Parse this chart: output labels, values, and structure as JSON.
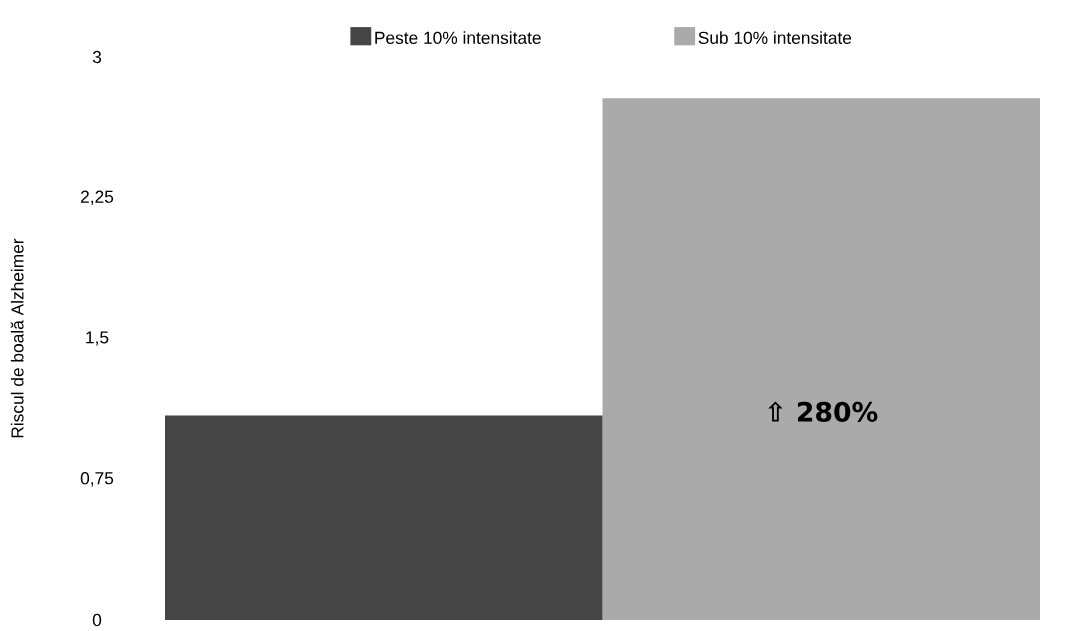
{
  "chart_data": {
    "type": "bar",
    "ylabel": "Riscul de boală Alzheimer",
    "categories": [
      null,
      null
    ],
    "series": [
      {
        "name": "Peste 10% intensitate",
        "color": "#454545",
        "values": [
          1.09,
          null
        ]
      },
      {
        "name": "Sub 10% intensitate",
        "color": "#aaaaaa",
        "values": [
          null,
          2.78
        ]
      }
    ],
    "ylim": [
      0,
      3
    ],
    "yticks": [
      {
        "value": 0,
        "label": "0"
      },
      {
        "value": 0.75,
        "label": "0,75"
      },
      {
        "value": 1.5,
        "label": "1,5"
      },
      {
        "value": 2.25,
        "label": "2,25"
      },
      {
        "value": 3,
        "label": "3"
      }
    ],
    "annotations": [
      "⇧ 280%"
    ],
    "stacked": true,
    "legend": "top",
    "grid": false,
    "tick_labels": "y"
  }
}
